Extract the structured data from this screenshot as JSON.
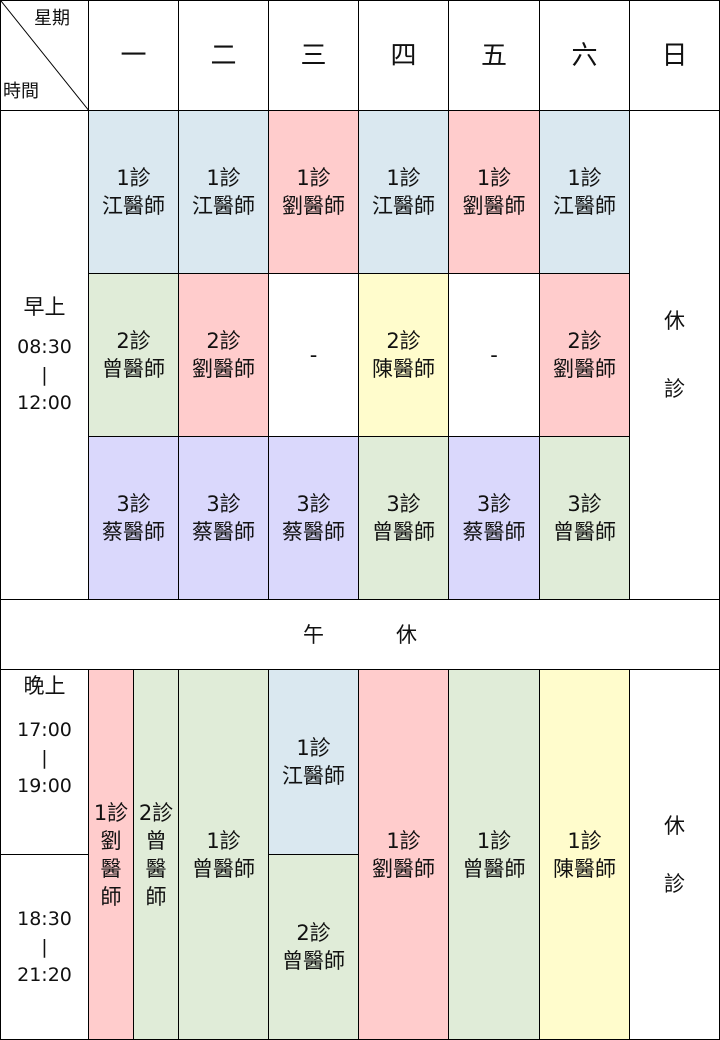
{
  "corner": {
    "top": "星期",
    "bottom": "時間"
  },
  "days": [
    "一",
    "二",
    "三",
    "四",
    "五",
    "六",
    "日"
  ],
  "morning": {
    "label": "早上",
    "time_start": "08:30",
    "dash": "|",
    "time_end": "12:00"
  },
  "morning_slots": [
    [
      {
        "room": "1診",
        "doctor": "江醫師",
        "color": "#dae8f0"
      },
      {
        "room": "2診",
        "doctor": "曾醫師",
        "color": "#e0ecd8"
      },
      {
        "room": "3診",
        "doctor": "蔡醫師",
        "color": "#dad8fc"
      }
    ],
    [
      {
        "room": "1診",
        "doctor": "江醫師",
        "color": "#dae8f0"
      },
      {
        "room": "2診",
        "doctor": "劉醫師",
        "color": "#ffcccc"
      },
      {
        "room": "3診",
        "doctor": "蔡醫師",
        "color": "#dad8fc"
      }
    ],
    [
      {
        "room": "1診",
        "doctor": "劉醫師",
        "color": "#ffcccc"
      },
      {
        "room": "",
        "doctor": "-",
        "color": "#ffffff"
      },
      {
        "room": "3診",
        "doctor": "蔡醫師",
        "color": "#dad8fc"
      }
    ],
    [
      {
        "room": "1診",
        "doctor": "江醫師",
        "color": "#dae8f0"
      },
      {
        "room": "2診",
        "doctor": "陳醫師",
        "color": "#fffccc"
      },
      {
        "room": "3診",
        "doctor": "曾醫師",
        "color": "#e0ecd8"
      }
    ],
    [
      {
        "room": "1診",
        "doctor": "劉醫師",
        "color": "#ffcccc"
      },
      {
        "room": "",
        "doctor": "-",
        "color": "#ffffff"
      },
      {
        "room": "3診",
        "doctor": "蔡醫師",
        "color": "#dad8fc"
      }
    ],
    [
      {
        "room": "1診",
        "doctor": "江醫師",
        "color": "#dae8f0"
      },
      {
        "room": "2診",
        "doctor": "劉醫師",
        "color": "#ffcccc"
      },
      {
        "room": "3診",
        "doctor": "曾醫師",
        "color": "#e0ecd8"
      }
    ]
  ],
  "closed": {
    "line1": "休",
    "line2": "診"
  },
  "lunch": {
    "left": "午",
    "right": "休"
  },
  "evening": {
    "label": "晚上",
    "time1_start": "17:00",
    "dash": "|",
    "time1_end": "19:00",
    "time2_start": "18:30",
    "time2_end": "21:20"
  },
  "evening_mon": [
    {
      "room": "1診",
      "doctor": [
        "劉",
        "醫",
        "師"
      ],
      "color": "#ffcccc"
    },
    {
      "room": "2診",
      "doctor": [
        "曾",
        "醫",
        "師"
      ],
      "color": "#e0ecd8"
    }
  ],
  "evening_tue": {
    "room": "1診",
    "doctor": "曾醫師",
    "color": "#e0ecd8"
  },
  "evening_wed": [
    {
      "room": "1診",
      "doctor": "江醫師",
      "color": "#dae8f0"
    },
    {
      "room": "2診",
      "doctor": "曾醫師",
      "color": "#e0ecd8"
    }
  ],
  "evening_thu": {
    "room": "1診",
    "doctor": "劉醫師",
    "color": "#ffcccc"
  },
  "evening_fri": {
    "room": "1診",
    "doctor": "曾醫師",
    "color": "#e0ecd8"
  },
  "evening_sat": {
    "room": "1診",
    "doctor": "陳醫師",
    "color": "#fffccc"
  }
}
